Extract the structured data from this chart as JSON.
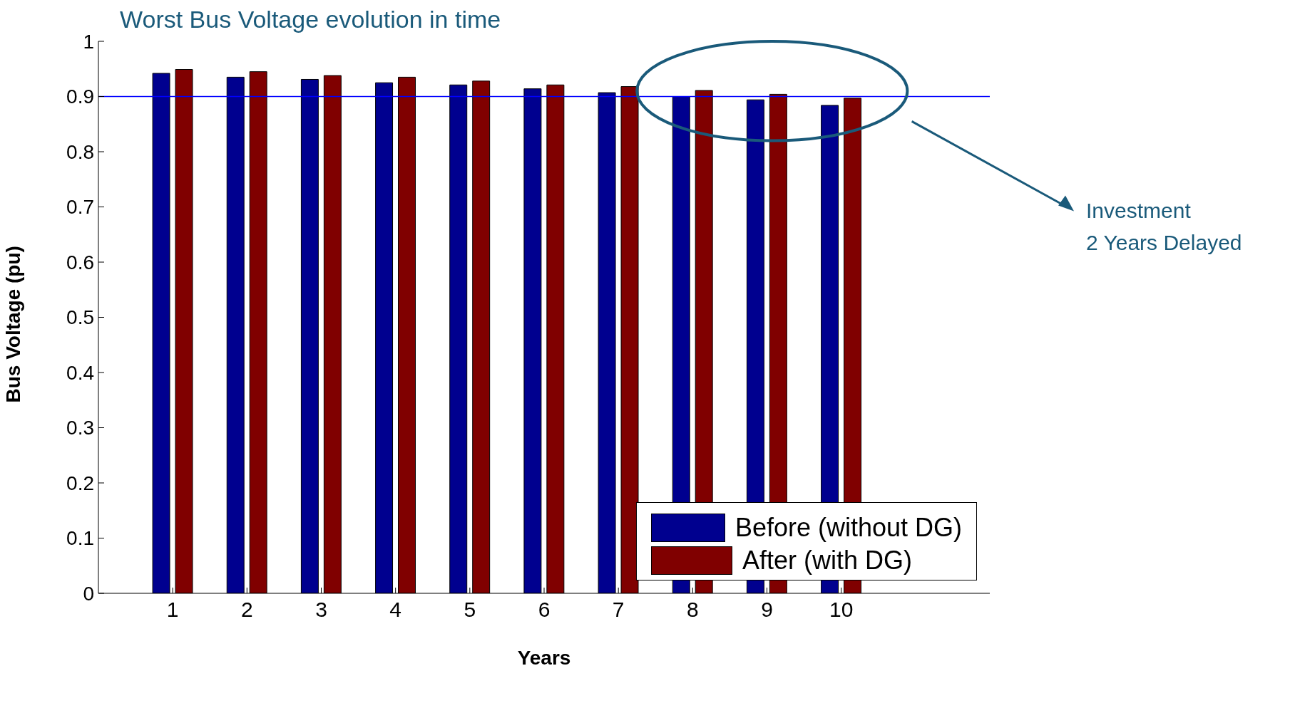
{
  "chart_data": {
    "type": "bar",
    "title": "Worst Bus Voltage evolution in time",
    "xlabel": "Years",
    "ylabel": "Bus Voltage (pu)",
    "x": [
      1,
      2,
      3,
      4,
      5,
      6,
      7,
      8,
      9,
      10
    ],
    "series": [
      {
        "name": "Before (without DG)",
        "color": "#00008f",
        "values": [
          0.942,
          0.935,
          0.931,
          0.925,
          0.921,
          0.914,
          0.907,
          0.9,
          0.894,
          0.884
        ]
      },
      {
        "name": "After (with DG)",
        "color": "#800000",
        "values": [
          0.949,
          0.945,
          0.938,
          0.935,
          0.928,
          0.921,
          0.918,
          0.911,
          0.904,
          0.897
        ]
      }
    ],
    "xlim": [
      0,
      12
    ],
    "xticks": [
      1,
      2,
      3,
      4,
      5,
      6,
      7,
      8,
      9,
      10
    ],
    "ylim": [
      0,
      1
    ],
    "yticks": [
      0,
      0.1,
      0.2,
      0.3,
      0.4,
      0.5,
      0.6,
      0.7,
      0.8,
      0.9,
      1
    ],
    "ref_lines": [
      {
        "axis": "y",
        "value": 0.9,
        "color": "#0000ff"
      }
    ],
    "annotations": [
      "Investment\n2 Years Delayed"
    ],
    "legend": "bottom right",
    "grid": false
  }
}
